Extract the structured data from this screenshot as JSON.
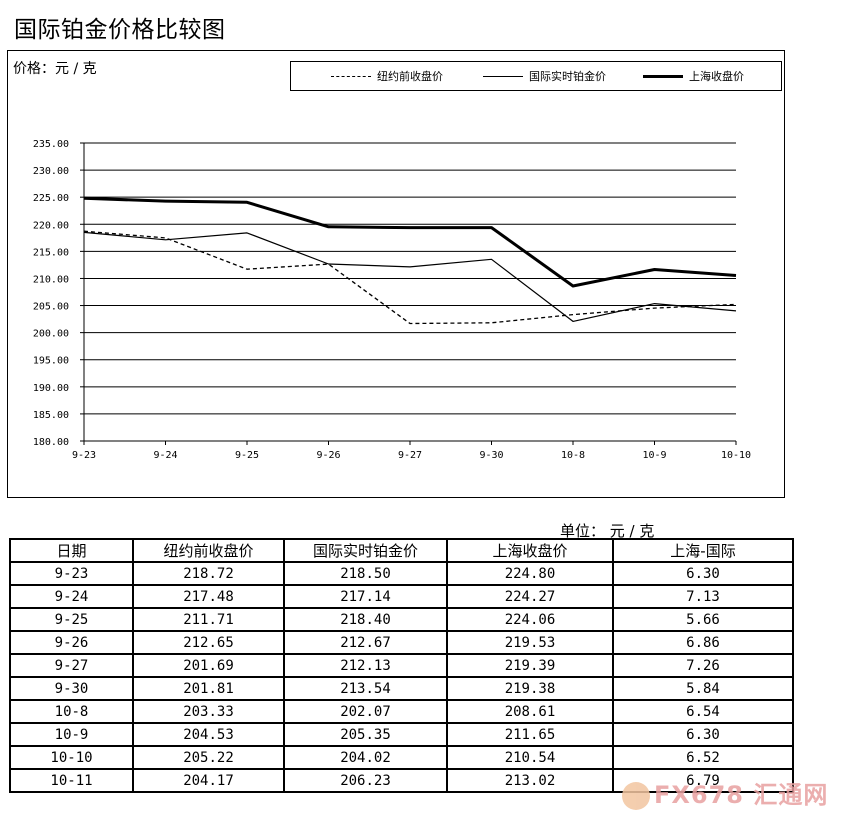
{
  "page_title": "国际铂金价格比较图",
  "chart_unit": "价格：元 / 克",
  "table_unit": "单位： 元 / 克",
  "chart_data": {
    "type": "line",
    "categories": [
      "9-23",
      "9-24",
      "9-25",
      "9-26",
      "9-27",
      "9-30",
      "10-8",
      "10-9",
      "10-10"
    ],
    "series": [
      {
        "name": "纽约前收盘价",
        "values": [
          218.72,
          217.48,
          211.71,
          212.65,
          201.69,
          201.81,
          203.33,
          204.53,
          205.22
        ],
        "style": "dashed",
        "color": "#000000"
      },
      {
        "name": "国际实时铂金价",
        "values": [
          218.5,
          217.14,
          218.4,
          212.67,
          212.13,
          213.54,
          202.07,
          205.35,
          204.02
        ],
        "style": "thin",
        "color": "#000000"
      },
      {
        "name": "上海收盘价",
        "values": [
          224.8,
          224.27,
          224.06,
          219.53,
          219.39,
          219.38,
          208.61,
          211.65,
          210.54
        ],
        "style": "thick",
        "color": "#000000"
      }
    ],
    "ylim": [
      180,
      235
    ],
    "yticks": [
      "235.00",
      "230.00",
      "225.00",
      "220.00",
      "215.00",
      "210.00",
      "205.00",
      "200.00",
      "195.00",
      "190.00",
      "185.00",
      "180.00"
    ],
    "grid": true,
    "legend_position": "top-right"
  },
  "table": {
    "headers": [
      "日期",
      "纽约前收盘价",
      "国际实时铂金价",
      "上海收盘价",
      "上海-国际"
    ],
    "rows": [
      [
        "9-23",
        "218.72",
        "218.50",
        "224.80",
        "6.30"
      ],
      [
        "9-24",
        "217.48",
        "217.14",
        "224.27",
        "7.13"
      ],
      [
        "9-25",
        "211.71",
        "218.40",
        "224.06",
        "5.66"
      ],
      [
        "9-26",
        "212.65",
        "212.67",
        "219.53",
        "6.86"
      ],
      [
        "9-27",
        "201.69",
        "212.13",
        "219.39",
        "7.26"
      ],
      [
        "9-30",
        "201.81",
        "213.54",
        "219.38",
        "5.84"
      ],
      [
        "10-8",
        "203.33",
        "202.07",
        "208.61",
        "6.54"
      ],
      [
        "10-9",
        "204.53",
        "205.35",
        "211.65",
        "6.30"
      ],
      [
        "10-10",
        "205.22",
        "204.02",
        "210.54",
        "6.52"
      ],
      [
        "10-11",
        "204.17",
        "206.23",
        "213.02",
        "6.79"
      ]
    ]
  },
  "watermark": "FX678 汇通网"
}
